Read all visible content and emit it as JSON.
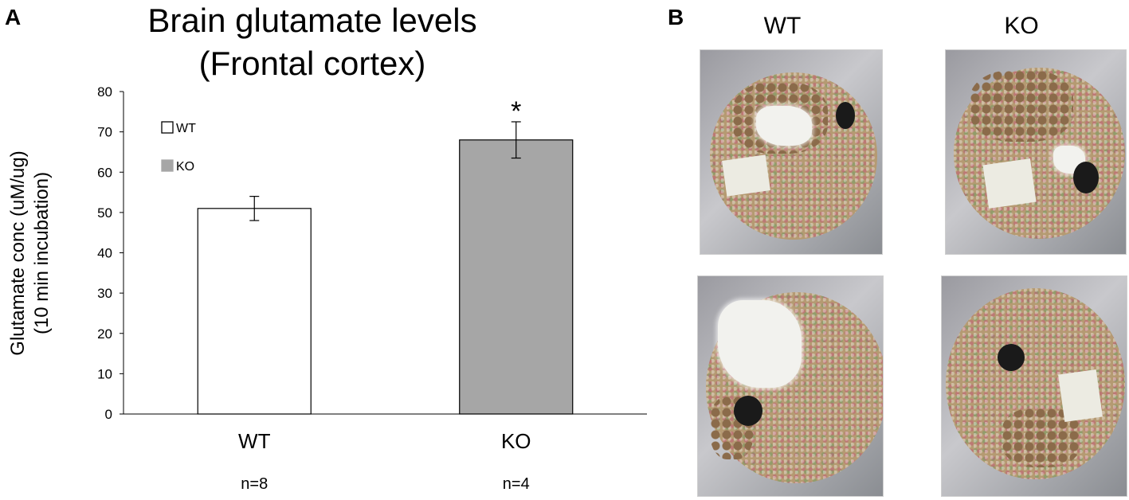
{
  "panel_a_letter": "A",
  "panel_b_letter": "B",
  "chart_data": {
    "type": "bar",
    "title": [
      "Brain glutamate levels",
      "(Frontal cortex)"
    ],
    "ylabel": [
      "Glutamate conc (uM/ug)",
      "(10 min incubation)"
    ],
    "categories": [
      "WT",
      "KO"
    ],
    "values": [
      51,
      68
    ],
    "errors": [
      3,
      4.5
    ],
    "bar_colors": [
      "#ffffff",
      "#a6a6a6"
    ],
    "sample_sizes": [
      "n=8",
      "n=4"
    ],
    "significance": [
      "",
      "*"
    ],
    "yticks": [
      "0",
      "10",
      "20",
      "30",
      "40",
      "50",
      "60",
      "70",
      "80"
    ],
    "ylim": [
      0,
      80
    ],
    "legend": [
      {
        "label": "WT",
        "color": "#ffffff"
      },
      {
        "label": "KO",
        "color": "#a6a6a6"
      }
    ],
    "legend_position": "top-left",
    "grid": false
  },
  "photos": {
    "column_labels": [
      "WT",
      "KO"
    ]
  }
}
